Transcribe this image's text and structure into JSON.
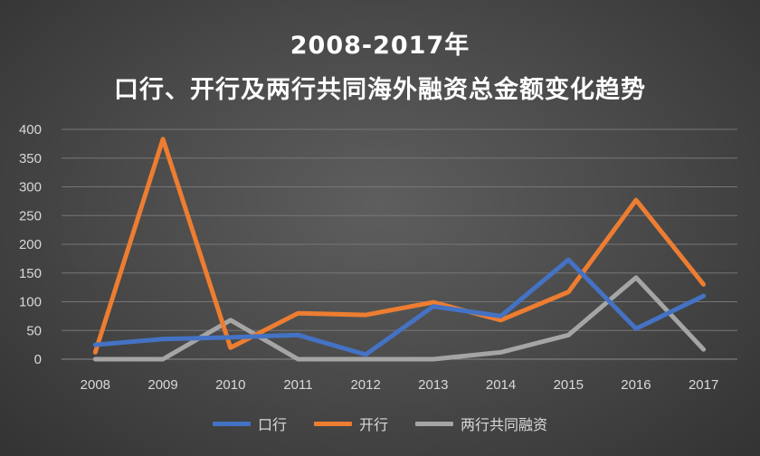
{
  "chart_data": {
    "type": "line",
    "title_line1": "2008-2017年",
    "title_line2": "口行、开行及两行共同海外融资总金额变化趋势",
    "x": [
      "2008",
      "2009",
      "2010",
      "2011",
      "2012",
      "2013",
      "2014",
      "2015",
      "2016",
      "2017"
    ],
    "ylim": [
      0,
      400
    ],
    "yticks": [
      0,
      50,
      100,
      150,
      200,
      250,
      300,
      350,
      400
    ],
    "grid": true,
    "legend_position": "bottom",
    "series": [
      {
        "name": "口行",
        "color": "#4472c4",
        "values": [
          25,
          35,
          38,
          42,
          8,
          92,
          75,
          173,
          53,
          110
        ]
      },
      {
        "name": "开行",
        "color": "#ed7d31",
        "values": [
          12,
          383,
          20,
          80,
          77,
          99,
          68,
          117,
          277,
          130
        ]
      },
      {
        "name": "两行共同融资",
        "color": "#a5a5a5",
        "values": [
          0,
          0,
          68,
          0,
          0,
          0,
          12,
          42,
          142,
          17
        ]
      }
    ]
  }
}
